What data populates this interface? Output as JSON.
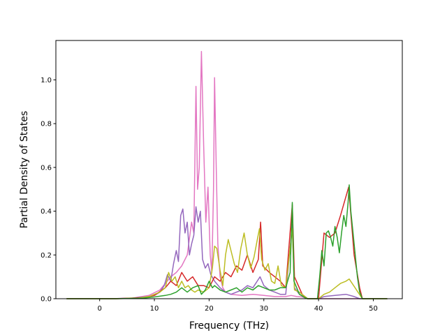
{
  "chart_data": {
    "type": "line",
    "title": "",
    "xlabel": "Frequency (THz)",
    "ylabel": "Partial Density of States",
    "xlim": [
      -8.0,
      55.3
    ],
    "ylim": [
      0.0,
      1.18
    ],
    "xticks": [
      0,
      10,
      20,
      30,
      40,
      50
    ],
    "yticks": [
      0.0,
      0.2,
      0.4,
      0.6,
      0.8,
      1.0
    ],
    "xtick_labels": [
      "0",
      "10",
      "20",
      "30",
      "40",
      "50"
    ],
    "ytick_labels": [
      "0.0",
      "0.2",
      "0.4",
      "0.6",
      "0.8",
      "1.0"
    ],
    "grid": false,
    "legend": "none",
    "series": [
      {
        "color": "#e377c2",
        "points": [
          [
            -6,
            0
          ],
          [
            2,
            0
          ],
          [
            6,
            0.003
          ],
          [
            9,
            0.015
          ],
          [
            11,
            0.04
          ],
          [
            12,
            0.07
          ],
          [
            13,
            0.1
          ],
          [
            14,
            0.12
          ],
          [
            15,
            0.15
          ],
          [
            16,
            0.2
          ],
          [
            16.8,
            0.35
          ],
          [
            17.2,
            0.3
          ],
          [
            17.6,
            0.97
          ],
          [
            17.9,
            0.5
          ],
          [
            18.2,
            0.6
          ],
          [
            18.6,
            1.13
          ],
          [
            19.0,
            0.7
          ],
          [
            19.4,
            0.35
          ],
          [
            19.8,
            0.51
          ],
          [
            20.2,
            0.2
          ],
          [
            20.5,
            0.12
          ],
          [
            20.8,
            0.5
          ],
          [
            21.0,
            1.01
          ],
          [
            21.3,
            0.6
          ],
          [
            21.6,
            0.25
          ],
          [
            22,
            0.1
          ],
          [
            22.5,
            0.05
          ],
          [
            23,
            0.03
          ],
          [
            24,
            0.02
          ],
          [
            26,
            0.015
          ],
          [
            28,
            0.02
          ],
          [
            30,
            0.015
          ],
          [
            32,
            0.01
          ],
          [
            34,
            0.01
          ],
          [
            35,
            0.015
          ],
          [
            36,
            0.01
          ],
          [
            37,
            0.008
          ],
          [
            38,
            0
          ],
          [
            40,
            0
          ],
          [
            52.5,
            0
          ]
        ]
      },
      {
        "color": "#9467bd",
        "points": [
          [
            -6,
            0
          ],
          [
            2,
            0
          ],
          [
            6,
            0.003
          ],
          [
            9,
            0.01
          ],
          [
            10,
            0.015
          ],
          [
            11,
            0.03
          ],
          [
            11.8,
            0.06
          ],
          [
            12.4,
            0.11
          ],
          [
            13,
            0.08
          ],
          [
            13.5,
            0.16
          ],
          [
            14,
            0.22
          ],
          [
            14.4,
            0.17
          ],
          [
            14.8,
            0.38
          ],
          [
            15.2,
            0.41
          ],
          [
            15.6,
            0.3
          ],
          [
            16,
            0.35
          ],
          [
            16.4,
            0.2
          ],
          [
            16.8,
            0.25
          ],
          [
            17.2,
            0.29
          ],
          [
            17.6,
            0.42
          ],
          [
            18.0,
            0.35
          ],
          [
            18.4,
            0.4
          ],
          [
            18.8,
            0.18
          ],
          [
            19.3,
            0.14
          ],
          [
            19.8,
            0.16
          ],
          [
            20.3,
            0.11
          ],
          [
            21,
            0.08
          ],
          [
            22,
            0.05
          ],
          [
            23,
            0.03
          ],
          [
            24,
            0.02
          ],
          [
            26,
            0.04
          ],
          [
            27,
            0.06
          ],
          [
            28,
            0.05
          ],
          [
            29.3,
            0.1
          ],
          [
            30,
            0.06
          ],
          [
            31,
            0.04
          ],
          [
            32,
            0.03
          ],
          [
            33,
            0.02
          ],
          [
            34,
            0.02
          ],
          [
            35.2,
            0.34
          ],
          [
            35.6,
            0.05
          ],
          [
            36.5,
            0.02
          ],
          [
            38,
            0
          ],
          [
            40,
            0
          ],
          [
            41,
            0.01
          ],
          [
            43,
            0.015
          ],
          [
            45,
            0.02
          ],
          [
            46.5,
            0.01
          ],
          [
            47.5,
            0
          ],
          [
            52.5,
            0
          ]
        ]
      },
      {
        "color": "#d62728",
        "points": [
          [
            -6,
            0
          ],
          [
            3,
            0
          ],
          [
            8,
            0.005
          ],
          [
            10,
            0.015
          ],
          [
            12,
            0.05
          ],
          [
            13,
            0.08
          ],
          [
            14,
            0.06
          ],
          [
            15,
            0.12
          ],
          [
            16,
            0.08
          ],
          [
            17,
            0.1
          ],
          [
            18,
            0.06
          ],
          [
            19,
            0.06
          ],
          [
            20,
            0.05
          ],
          [
            21,
            0.1
          ],
          [
            22,
            0.08
          ],
          [
            23,
            0.12
          ],
          [
            24,
            0.1
          ],
          [
            25,
            0.15
          ],
          [
            26,
            0.13
          ],
          [
            27,
            0.2
          ],
          [
            28,
            0.12
          ],
          [
            29,
            0.18
          ],
          [
            29.4,
            0.35
          ],
          [
            29.8,
            0.15
          ],
          [
            31,
            0.12
          ],
          [
            32,
            0.1
          ],
          [
            33,
            0.08
          ],
          [
            34,
            0.05
          ],
          [
            35.2,
            0.43
          ],
          [
            35.6,
            0.1
          ],
          [
            37,
            0.02
          ],
          [
            38,
            0
          ],
          [
            40,
            0
          ],
          [
            41,
            0.3
          ],
          [
            42,
            0.28
          ],
          [
            43,
            0.3
          ],
          [
            44,
            0.38
          ],
          [
            45.5,
            0.51
          ],
          [
            46.5,
            0.2
          ],
          [
            47.5,
            0.05
          ],
          [
            48,
            0
          ],
          [
            52.5,
            0
          ]
        ]
      },
      {
        "color": "#bcbd22",
        "points": [
          [
            -6,
            0
          ],
          [
            3,
            0
          ],
          [
            7,
            0.003
          ],
          [
            9,
            0.01
          ],
          [
            10,
            0.02
          ],
          [
            11,
            0.03
          ],
          [
            12,
            0.05
          ],
          [
            12.6,
            0.12
          ],
          [
            13.2,
            0.08
          ],
          [
            13.8,
            0.1
          ],
          [
            14.4,
            0.05
          ],
          [
            15,
            0.08
          ],
          [
            15.6,
            0.05
          ],
          [
            16.2,
            0.06
          ],
          [
            16.8,
            0.04
          ],
          [
            17.4,
            0.03
          ],
          [
            18,
            0.04
          ],
          [
            19,
            0.03
          ],
          [
            20,
            0.05
          ],
          [
            20.6,
            0.14
          ],
          [
            21,
            0.24
          ],
          [
            21.4,
            0.23
          ],
          [
            22,
            0.13
          ],
          [
            22.5,
            0.06
          ],
          [
            23,
            0.2
          ],
          [
            23.5,
            0.27
          ],
          [
            24,
            0.22
          ],
          [
            24.6,
            0.16
          ],
          [
            25.2,
            0.12
          ],
          [
            25.8,
            0.23
          ],
          [
            26.4,
            0.3
          ],
          [
            27,
            0.2
          ],
          [
            27.6,
            0.14
          ],
          [
            28.2,
            0.19
          ],
          [
            28.8,
            0.27
          ],
          [
            29.2,
            0.32
          ],
          [
            29.6,
            0.18
          ],
          [
            30.2,
            0.13
          ],
          [
            30.8,
            0.16
          ],
          [
            31.4,
            0.08
          ],
          [
            32,
            0.07
          ],
          [
            32.6,
            0.15
          ],
          [
            33.2,
            0.06
          ],
          [
            34,
            0.05
          ],
          [
            35.2,
            0.32
          ],
          [
            35.6,
            0.04
          ],
          [
            36.5,
            0.03
          ],
          [
            37.5,
            0.01
          ],
          [
            38,
            0
          ],
          [
            40,
            0
          ],
          [
            41,
            0.02
          ],
          [
            42,
            0.03
          ],
          [
            43,
            0.05
          ],
          [
            44,
            0.07
          ],
          [
            45,
            0.08
          ],
          [
            45.6,
            0.09
          ],
          [
            46.4,
            0.06
          ],
          [
            47.2,
            0.03
          ],
          [
            48,
            0
          ],
          [
            52.5,
            0
          ]
        ]
      },
      {
        "color": "#2ca02c",
        "points": [
          [
            -6,
            0
          ],
          [
            3,
            0
          ],
          [
            8,
            0.003
          ],
          [
            10,
            0.008
          ],
          [
            12,
            0.015
          ],
          [
            13,
            0.02
          ],
          [
            14,
            0.03
          ],
          [
            15,
            0.05
          ],
          [
            16,
            0.03
          ],
          [
            17,
            0.05
          ],
          [
            18,
            0.06
          ],
          [
            18.6,
            0.02
          ],
          [
            19.3,
            0.04
          ],
          [
            20,
            0.08
          ],
          [
            20.6,
            0.05
          ],
          [
            21,
            0.06
          ],
          [
            22,
            0.04
          ],
          [
            23,
            0.03
          ],
          [
            24,
            0.04
          ],
          [
            25,
            0.05
          ],
          [
            26,
            0.03
          ],
          [
            27,
            0.05
          ],
          [
            28,
            0.04
          ],
          [
            29,
            0.06
          ],
          [
            30,
            0.05
          ],
          [
            31,
            0.04
          ],
          [
            32,
            0.04
          ],
          [
            33,
            0.05
          ],
          [
            34,
            0.05
          ],
          [
            34.8,
            0.12
          ],
          [
            35.2,
            0.44
          ],
          [
            35.5,
            0.08
          ],
          [
            36.5,
            0.02
          ],
          [
            37.5,
            0.005
          ],
          [
            38,
            0
          ],
          [
            39.8,
            0
          ],
          [
            40.2,
            0.1
          ],
          [
            40.6,
            0.22
          ],
          [
            41.0,
            0.15
          ],
          [
            41.4,
            0.3
          ],
          [
            41.8,
            0.31
          ],
          [
            42.2,
            0.28
          ],
          [
            42.6,
            0.24
          ],
          [
            43.0,
            0.33
          ],
          [
            43.4,
            0.28
          ],
          [
            43.8,
            0.21
          ],
          [
            44.2,
            0.3
          ],
          [
            44.6,
            0.38
          ],
          [
            45.0,
            0.33
          ],
          [
            45.4,
            0.44
          ],
          [
            45.6,
            0.52
          ],
          [
            45.9,
            0.4
          ],
          [
            46.3,
            0.3
          ],
          [
            46.7,
            0.2
          ],
          [
            47.1,
            0.1
          ],
          [
            47.5,
            0.03
          ],
          [
            48,
            0
          ],
          [
            52.5,
            0
          ]
        ]
      }
    ]
  }
}
